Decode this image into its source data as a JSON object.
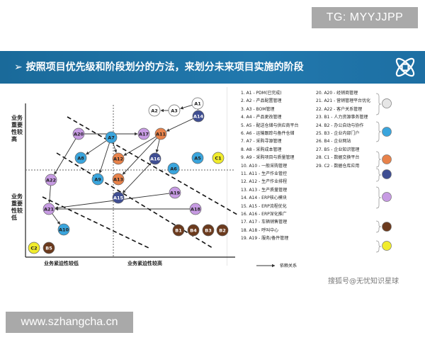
{
  "watermark_top": "TG: MYYJJPP",
  "header": {
    "title": "➢ 按照项目优先级和阶段划分的方法，来划分未来项目实施的阶段"
  },
  "axes": {
    "y_top": [
      "业务",
      "重要",
      "性较",
      "高"
    ],
    "y_bottom": [
      "业务",
      "重要",
      "性较",
      "低"
    ],
    "x_left": "业务紧迫性较低",
    "x_right": "业务紧迫性较高"
  },
  "nodes": [
    {
      "id": "A1",
      "c": "#ffffff",
      "t": "#222"
    },
    {
      "id": "A2",
      "c": "#ffffff",
      "t": "#222"
    },
    {
      "id": "A3",
      "c": "#ffffff",
      "t": "#222"
    },
    {
      "id": "A14",
      "c": "#3f4e92",
      "t": "#fff"
    },
    {
      "id": "A20",
      "c": "#c79be3",
      "t": "#222"
    },
    {
      "id": "A7",
      "c": "#3aa5dd",
      "t": "#222"
    },
    {
      "id": "A17",
      "c": "#c79be3",
      "t": "#222"
    },
    {
      "id": "A11",
      "c": "#e8824a",
      "t": "#222"
    },
    {
      "id": "A8",
      "c": "#3aa5dd",
      "t": "#222"
    },
    {
      "id": "A12",
      "c": "#e8824a",
      "t": "#222"
    },
    {
      "id": "A16",
      "c": "#3f4e92",
      "t": "#fff"
    },
    {
      "id": "A5",
      "c": "#3aa5dd",
      "t": "#222"
    },
    {
      "id": "C1",
      "c": "#f1ec2c",
      "t": "#222"
    },
    {
      "id": "A6",
      "c": "#3aa5dd",
      "t": "#222"
    },
    {
      "id": "A22",
      "c": "#c79be3",
      "t": "#222"
    },
    {
      "id": "A9",
      "c": "#3aa5dd",
      "t": "#222"
    },
    {
      "id": "A13",
      "c": "#e8824a",
      "t": "#222"
    },
    {
      "id": "A19",
      "c": "#c79be3",
      "t": "#222"
    },
    {
      "id": "A15",
      "c": "#3f4e92",
      "t": "#fff"
    },
    {
      "id": "A21",
      "c": "#c79be3",
      "t": "#222"
    },
    {
      "id": "A18",
      "c": "#c79be3",
      "t": "#222"
    },
    {
      "id": "A10",
      "c": "#3aa5dd",
      "t": "#222"
    },
    {
      "id": "B1",
      "c": "#6b3a1d",
      "t": "#fff"
    },
    {
      "id": "B4",
      "c": "#6b3a1d",
      "t": "#fff"
    },
    {
      "id": "B3",
      "c": "#6b3a1d",
      "t": "#fff"
    },
    {
      "id": "B2",
      "c": "#6b3a1d",
      "t": "#fff"
    },
    {
      "id": "C2",
      "c": "#f1ec2c",
      "t": "#222"
    },
    {
      "id": "B5",
      "c": "#6b3a1d",
      "t": "#fff"
    }
  ],
  "legend_col1": [
    "1.    A1 - PDM(已完成)",
    "2.    A2 - 产品配置管理",
    "3.    A3 - BOM管理",
    "4.    A4 - 产品更改管理",
    "5.    A5 - 配送仓储与供应商平台",
    "6.    A6 - 运输跟踪与备件仓储",
    "7.    A7 - 采购寻源管理",
    "8.    A8 - 采购成本管理",
    "9.    A9 - 采购项目与质量管理",
    "10.  A10 - 一般采购管理",
    "11.  A11 - 生产作业管控",
    "12.  A12 - 生产作业排程",
    "13.  A13 - 生产质量管理",
    "14.  A14 - ERP核心模块",
    "15.  A15 - ERP流程优化",
    "16.  A16 - ERP深化推广",
    "17.  A17 - 车辆销售管理",
    "18.  A18 - 呼叫中心",
    "19.  A19 - 服务/备件管理"
  ],
  "legend_col2": [
    "20.  A20 - 经销商管理",
    "21.  A21 - 营销管理平台优化",
    "22.  A22 - 客户关系管理",
    "23.  B1 - 人力资源事务管理",
    "24.  B2 - 办公自动与协作",
    "25.  B3 - 企业内部门户",
    "26.  B4 - 企业网站",
    "27.  B5 - 企业知识管理",
    "28.  C1 - 数据交换平台",
    "29.  C2 - 数据仓库应用"
  ],
  "legend_dots": [
    "#e6e6e6",
    "#3aa5dd",
    "#e8824a",
    "#3f4e92",
    "#c79be3",
    "#6b3a1d",
    "#f1ec2c"
  ],
  "arrow_legend": "依赖关系",
  "watermark_sohu": "搜狐号@无忧知识星球",
  "watermark_bottom": "www.szhangcha.cn"
}
